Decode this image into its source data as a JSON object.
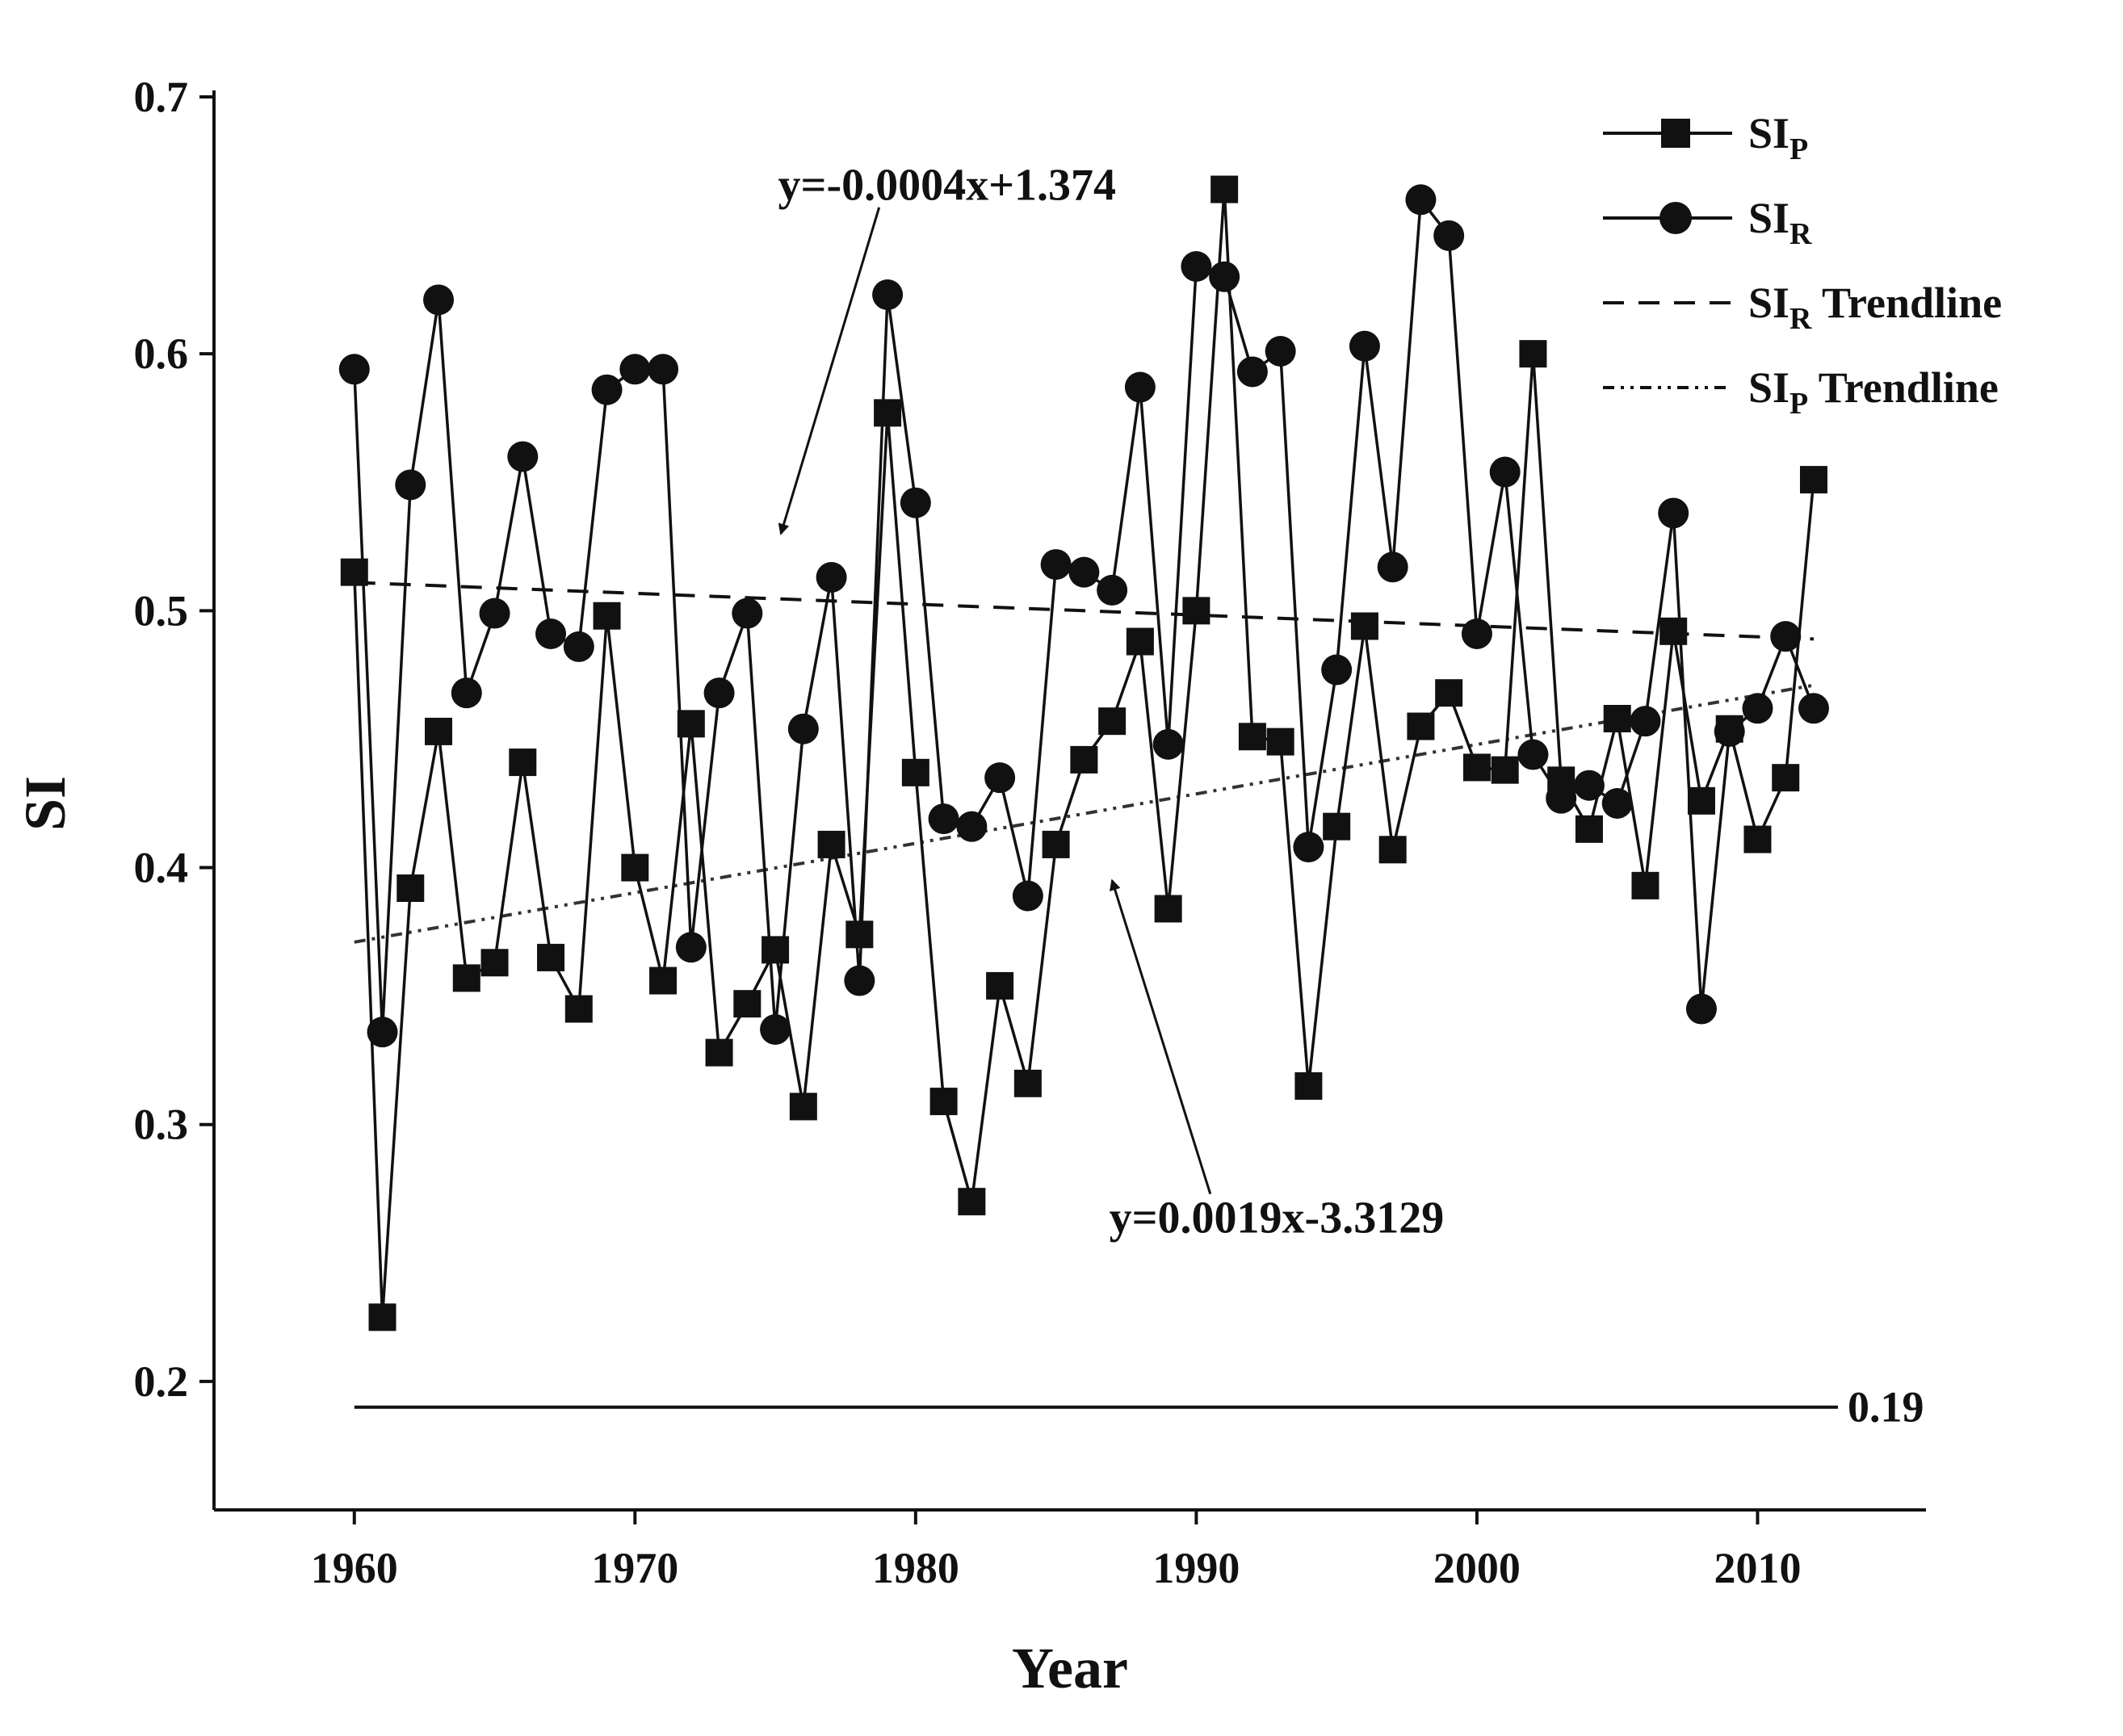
{
  "chart_data": {
    "type": "line",
    "title": "",
    "xlabel": "Year",
    "ylabel": "SI",
    "xlim": [
      1955,
      2016
    ],
    "ylim": [
      0.15,
      0.7
    ],
    "xticks": [
      1960,
      1970,
      1980,
      1990,
      2000,
      2010
    ],
    "yticks": [
      0.2,
      0.3,
      0.4,
      0.5,
      0.6,
      0.7
    ],
    "xtick_labels": [
      "1960",
      "1970",
      "1980",
      "1990",
      "2000",
      "2010"
    ],
    "ytick_labels": [
      "0.2",
      "0.3",
      "0.4",
      "0.5",
      "0.6",
      "0.7"
    ],
    "grid": false,
    "legend_position": "top-right",
    "x": [
      1960,
      1961,
      1962,
      1963,
      1964,
      1965,
      1966,
      1967,
      1968,
      1969,
      1970,
      1971,
      1972,
      1973,
      1974,
      1975,
      1976,
      1977,
      1978,
      1979,
      1980,
      1981,
      1982,
      1983,
      1984,
      1985,
      1986,
      1987,
      1988,
      1989,
      1990,
      1991,
      1992,
      1993,
      1994,
      1995,
      1996,
      1997,
      1998,
      1999,
      2000,
      2001,
      2002,
      2003,
      2004,
      2005,
      2006,
      2007,
      2008,
      2009,
      2010,
      2011,
      2012
    ],
    "series": [
      {
        "name": "SIP",
        "label_main": "SI",
        "label_sub": "P",
        "label_rest": "",
        "marker": "square",
        "values": [
          0.515,
          0.225,
          0.392,
          0.453,
          0.357,
          0.363,
          0.441,
          0.365,
          0.345,
          0.498,
          0.4,
          0.356,
          0.456,
          0.328,
          0.347,
          0.368,
          0.307,
          0.409,
          0.374,
          0.577,
          0.437,
          0.309,
          0.27,
          0.354,
          0.316,
          0.409,
          0.442,
          0.457,
          0.488,
          0.384,
          0.5,
          0.664,
          0.451,
          0.449,
          0.315,
          0.416,
          0.494,
          0.407,
          0.455,
          0.468,
          0.439,
          0.438,
          0.6,
          0.434,
          0.415,
          0.458,
          0.393,
          0.492,
          0.426,
          0.454,
          0.411,
          0.435,
          0.551
        ]
      },
      {
        "name": "SIR",
        "label_main": "SI",
        "label_sub": "R",
        "label_rest": "",
        "marker": "circle",
        "values": [
          0.594,
          0.336,
          0.549,
          0.621,
          0.468,
          0.499,
          0.56,
          0.491,
          0.486,
          0.586,
          0.594,
          0.594,
          0.369,
          0.468,
          0.499,
          0.337,
          0.454,
          0.513,
          0.356,
          0.623,
          0.542,
          0.419,
          0.416,
          0.435,
          0.389,
          0.518,
          0.515,
          0.508,
          0.587,
          0.448,
          0.634,
          0.63,
          0.593,
          0.601,
          0.408,
          0.477,
          0.603,
          0.517,
          0.66,
          0.646,
          0.491,
          0.554,
          0.444,
          0.427,
          0.432,
          0.425,
          0.457,
          0.538,
          0.345,
          0.453,
          0.462,
          0.49,
          0.462
        ]
      }
    ],
    "trendlines": [
      {
        "name": "SIR Trendline",
        "label_main": "SI",
        "label_sub": "R",
        "label_rest": " Trendline",
        "style": "dashed",
        "x_range": [
          1960,
          2012
        ],
        "y_values": [
          0.511,
          0.489
        ]
      },
      {
        "name": "SIP Trendline",
        "label_main": "SI",
        "label_sub": "P",
        "label_rest": " Trendline",
        "style": "dash-dot-dot",
        "x_range": [
          1960,
          2012
        ],
        "y_values": [
          0.371,
          0.471
        ]
      }
    ],
    "reference_line": {
      "y": 0.19,
      "x_range": [
        1960,
        2012
      ],
      "label": "0.19"
    },
    "annotations": [
      {
        "text": "y=-0.0004x+1.374",
        "text_anchor_point": [
          1975.1,
          0.66
        ],
        "arrow_from": [
          1978.7,
          0.657
        ],
        "arrow_to": [
          1975.2,
          0.53
        ]
      },
      {
        "text": "y=0.0019x-3.3129",
        "text_anchor_point": [
          1986.9,
          0.258
        ],
        "arrow_from": [
          1990.5,
          0.273
        ],
        "arrow_to": [
          1987.0,
          0.395
        ]
      }
    ]
  }
}
